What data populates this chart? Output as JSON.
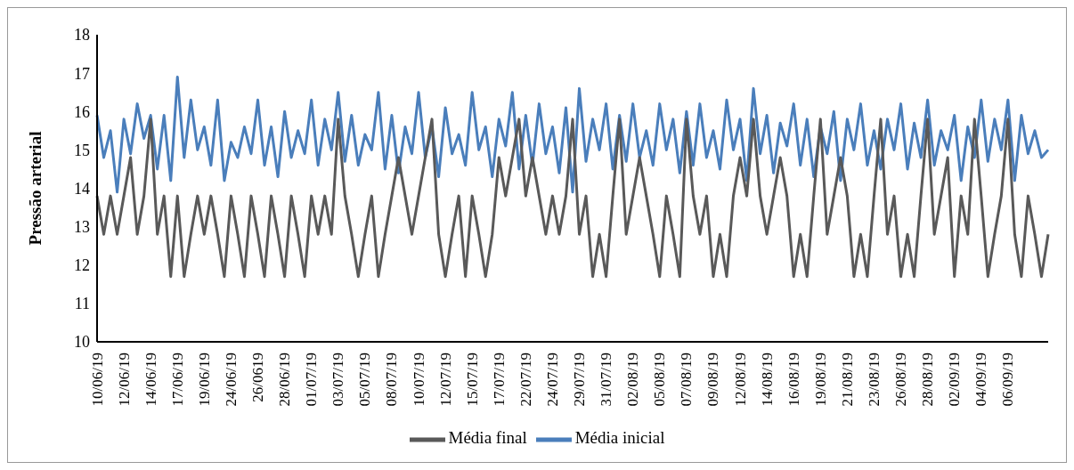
{
  "chart_data": {
    "type": "line",
    "ylabel": "Pressão arterial",
    "categories": [
      "10/06/19",
      null,
      null,
      null,
      "12/06/19",
      null,
      null,
      null,
      "14/06/19",
      null,
      null,
      null,
      "17/06/19",
      null,
      null,
      null,
      "19/06/19",
      null,
      null,
      null,
      "24/06/19",
      null,
      null,
      null,
      "26/0619",
      null,
      null,
      null,
      "28/06/19",
      null,
      null,
      null,
      "01/07/19",
      null,
      null,
      null,
      "03/07/19",
      null,
      null,
      null,
      "05/07/19",
      null,
      null,
      null,
      "08/07/19",
      null,
      null,
      null,
      "10/07/19",
      null,
      null,
      null,
      "12/07/19",
      null,
      null,
      null,
      "15/07/19",
      null,
      null,
      null,
      "17/07/19",
      null,
      null,
      null,
      "22/07/19",
      null,
      null,
      null,
      "24/07/19",
      null,
      null,
      null,
      "29/07/19",
      null,
      null,
      null,
      "31/07/19",
      null,
      null,
      null,
      "02/08/19",
      null,
      null,
      null,
      "05/08/19",
      null,
      null,
      null,
      "07/08/19",
      null,
      null,
      null,
      "09/08/19",
      null,
      null,
      null,
      "12/08/19",
      null,
      null,
      null,
      "14/08/19",
      null,
      null,
      null,
      "16/08/19",
      null,
      null,
      null,
      "19/08/19",
      null,
      null,
      null,
      "21/08/19",
      null,
      null,
      null,
      "23/08/19",
      null,
      null,
      null,
      "26/08/19",
      null,
      null,
      null,
      "28/08/19",
      null,
      null,
      null,
      "02/09/19",
      null,
      null,
      null,
      "04/09/19",
      null,
      null,
      null,
      "06/09/19",
      null,
      null,
      null,
      null,
      null,
      null
    ],
    "series": [
      {
        "name": "Média inicial",
        "color": "#4a7ebb",
        "values": [
          15.9,
          14.8,
          15.5,
          13.9,
          15.8,
          14.9,
          16.2,
          15.3,
          15.9,
          14.5,
          15.9,
          14.2,
          16.9,
          14.8,
          16.3,
          15.0,
          15.6,
          14.6,
          16.3,
          14.2,
          15.2,
          14.8,
          15.6,
          14.9,
          16.3,
          14.6,
          15.6,
          14.3,
          16.0,
          14.8,
          15.5,
          14.9,
          16.3,
          14.6,
          15.8,
          15.0,
          16.5,
          14.7,
          15.9,
          14.6,
          15.4,
          15.0,
          16.5,
          14.5,
          15.9,
          14.4,
          15.6,
          14.9,
          16.5,
          14.8,
          15.6,
          14.3,
          16.1,
          14.9,
          15.4,
          14.6,
          16.5,
          15.0,
          15.6,
          14.3,
          15.8,
          15.1,
          16.5,
          14.5,
          15.9,
          14.6,
          16.2,
          14.9,
          15.6,
          14.4,
          16.1,
          13.9,
          16.6,
          14.7,
          15.8,
          15.0,
          16.2,
          14.5,
          15.9,
          14.7,
          16.2,
          14.8,
          15.5,
          14.6,
          16.2,
          15.0,
          15.8,
          14.4,
          16.0,
          14.6,
          16.2,
          14.8,
          15.5,
          14.5,
          16.3,
          15.0,
          15.8,
          14.2,
          16.6,
          14.9,
          15.9,
          14.4,
          15.7,
          15.1,
          16.2,
          14.6,
          15.8,
          14.3,
          15.6,
          14.9,
          16.0,
          14.2,
          15.8,
          15.0,
          16.2,
          14.6,
          15.5,
          14.5,
          15.8,
          15.0,
          16.2,
          14.5,
          15.7,
          14.8,
          16.3,
          14.6,
          15.5,
          15.0,
          15.9,
          14.2,
          15.6,
          14.8,
          16.3,
          14.7,
          15.8,
          15.0,
          16.3,
          14.2,
          15.9,
          14.9,
          15.5,
          14.8,
          15.0
        ]
      },
      {
        "name": "Média final",
        "color": "#595959",
        "values": [
          13.8,
          12.8,
          13.8,
          12.8,
          13.8,
          14.8,
          12.8,
          13.8,
          15.8,
          12.8,
          13.8,
          11.7,
          13.8,
          11.7,
          12.8,
          13.8,
          12.8,
          13.8,
          12.8,
          11.7,
          13.8,
          12.8,
          11.7,
          13.8,
          12.8,
          11.7,
          13.8,
          12.8,
          11.7,
          13.8,
          12.8,
          11.7,
          13.8,
          12.8,
          13.8,
          12.8,
          15.8,
          13.8,
          12.8,
          11.7,
          12.8,
          13.8,
          11.7,
          12.8,
          13.8,
          14.8,
          13.8,
          12.8,
          13.8,
          14.8,
          15.8,
          12.8,
          11.7,
          12.8,
          13.8,
          11.7,
          13.8,
          12.8,
          11.7,
          12.8,
          14.8,
          13.8,
          14.8,
          15.8,
          13.8,
          14.8,
          13.8,
          12.8,
          13.8,
          12.8,
          13.8,
          15.8,
          12.8,
          13.8,
          11.7,
          12.8,
          11.7,
          13.8,
          15.8,
          12.8,
          13.8,
          14.8,
          13.8,
          12.8,
          11.7,
          13.8,
          12.8,
          11.7,
          15.8,
          13.8,
          12.8,
          13.8,
          11.7,
          12.8,
          11.7,
          13.8,
          14.8,
          13.8,
          15.8,
          13.8,
          12.8,
          13.8,
          14.8,
          13.8,
          11.7,
          12.8,
          11.7,
          13.8,
          15.8,
          12.8,
          13.8,
          14.8,
          13.8,
          11.7,
          12.8,
          11.7,
          13.8,
          15.8,
          12.8,
          13.8,
          11.7,
          12.8,
          11.7,
          13.8,
          15.8,
          12.8,
          13.8,
          14.8,
          11.7,
          13.8,
          12.8,
          15.8,
          13.8,
          11.7,
          12.8,
          13.8,
          15.8,
          12.8,
          11.7,
          13.8,
          12.8,
          11.7,
          12.8
        ]
      }
    ],
    "ylim": [
      10,
      18
    ],
    "yticks": [
      10,
      11,
      12,
      13,
      14,
      15,
      16,
      17,
      18
    ],
    "grid": false,
    "legend": "bottom",
    "marker": "none",
    "line_style": "solid"
  }
}
